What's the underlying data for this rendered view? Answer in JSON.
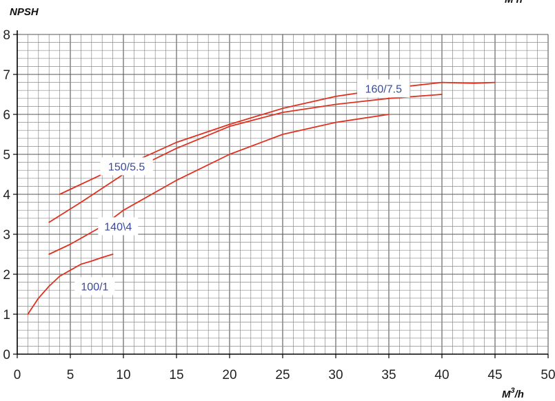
{
  "chart_data": {
    "type": "line",
    "title": "",
    "ylabel": "NPSH",
    "xlabel_base": "M",
    "xlabel_sup": "3",
    "xlabel_tail": "/h",
    "corner_mark": "M h",
    "xlim": [
      0,
      50
    ],
    "ylim": [
      0,
      8
    ],
    "x_major_ticks": [
      0,
      5,
      10,
      15,
      20,
      25,
      30,
      35,
      40,
      45,
      50
    ],
    "y_major_ticks": [
      0,
      1,
      2,
      3,
      4,
      5,
      6,
      7,
      8
    ],
    "x_minor_step": 1,
    "y_minor_step": 0.2,
    "grid": true,
    "line_color": "#e0301e",
    "grid_color": "#8a8a8a",
    "series": [
      {
        "name": "100/1",
        "x": [
          1,
          2,
          3,
          4,
          5,
          6,
          7,
          8,
          9
        ],
        "y": [
          1.0,
          1.4,
          1.7,
          1.95,
          2.1,
          2.25,
          2.33,
          2.42,
          2.5
        ]
      },
      {
        "name": "140\\4",
        "x": [
          3,
          5,
          8,
          10,
          15,
          20,
          25,
          30,
          35
        ],
        "y": [
          2.5,
          2.75,
          3.2,
          3.6,
          4.35,
          5.0,
          5.5,
          5.8,
          6.0
        ]
      },
      {
        "name": "150/5.5",
        "x": [
          3,
          6,
          10,
          15,
          20,
          25,
          30,
          35,
          40
        ],
        "y": [
          3.3,
          3.8,
          4.5,
          5.15,
          5.7,
          6.05,
          6.25,
          6.4,
          6.5
        ]
      },
      {
        "name": "160/7.5",
        "x": [
          4,
          6,
          8,
          10,
          15,
          20,
          25,
          30,
          35,
          40,
          43,
          45
        ],
        "y": [
          4.0,
          4.25,
          4.5,
          4.7,
          5.3,
          5.75,
          6.15,
          6.45,
          6.65,
          6.8,
          6.78,
          6.8
        ]
      }
    ],
    "labels": [
      {
        "text": "100/1",
        "x": 7.3,
        "y": 1.7
      },
      {
        "text": "140\\4",
        "x": 9.5,
        "y": 3.2
      },
      {
        "text": "150/5.5",
        "x": 10.3,
        "y": 4.7
      },
      {
        "text": "160/7.5",
        "x": 34.5,
        "y": 6.65
      }
    ]
  }
}
